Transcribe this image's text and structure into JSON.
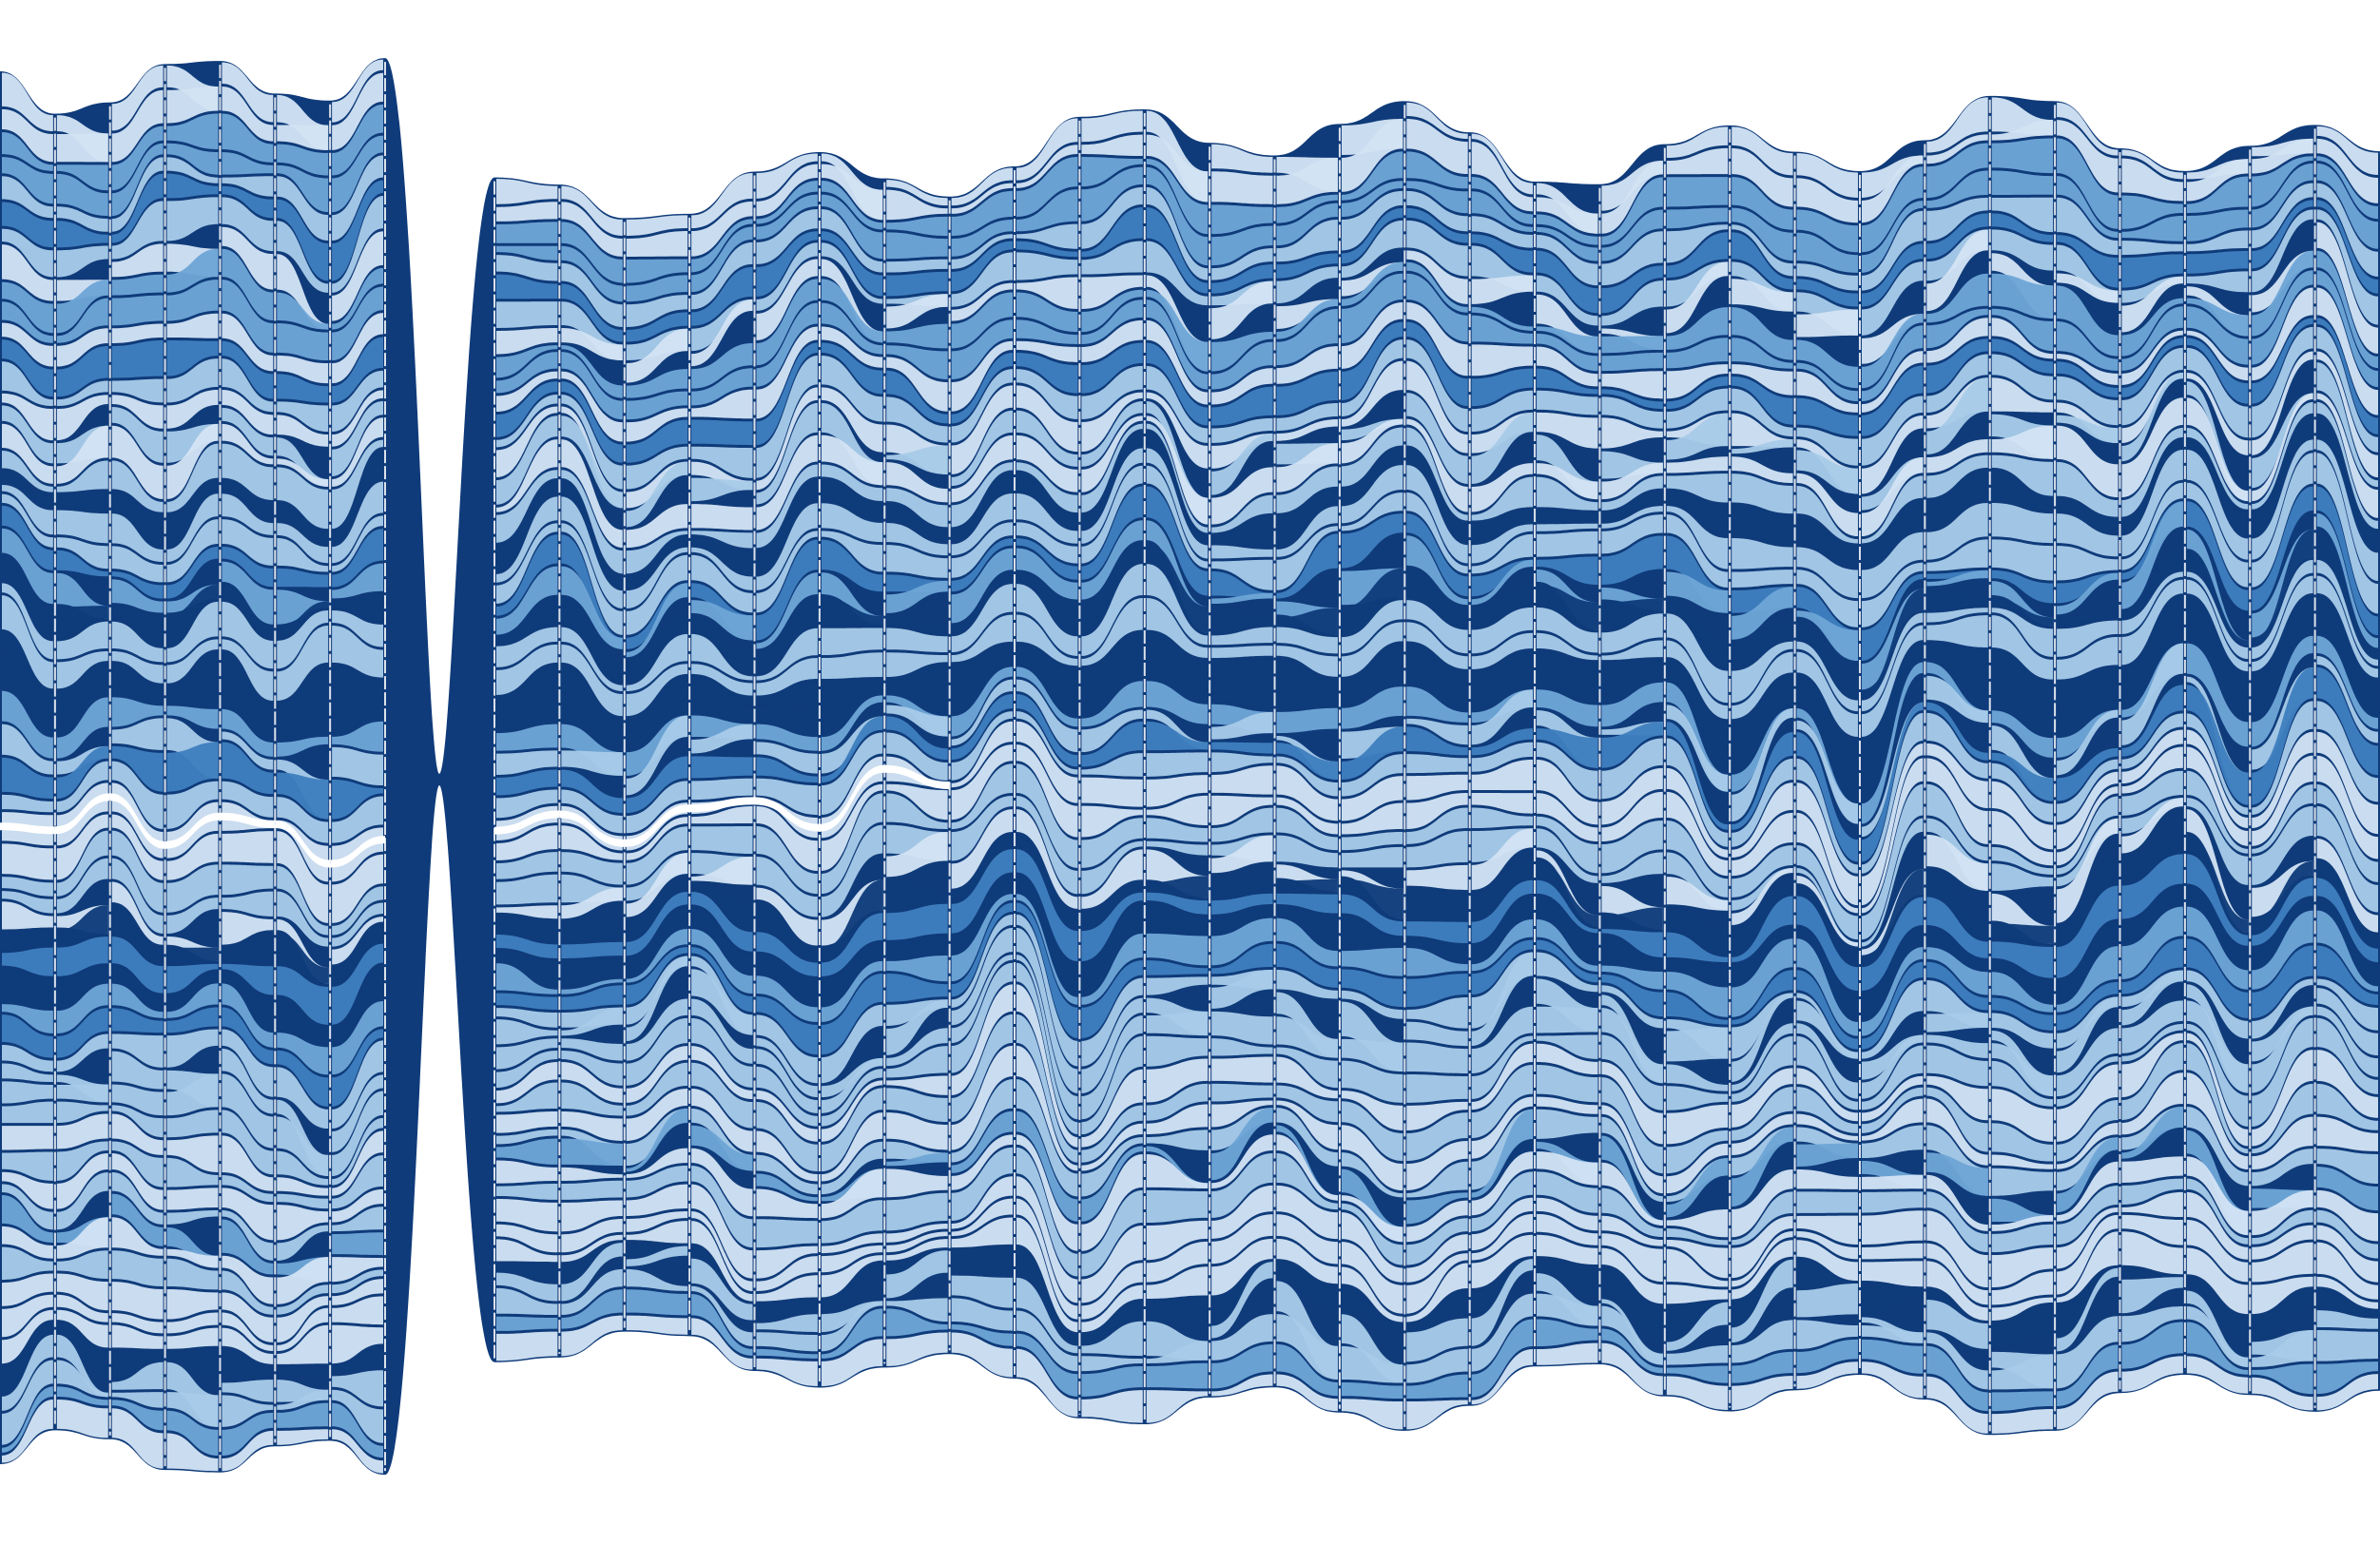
{
  "figure": {
    "kind": "flow-ribbon-diagram",
    "text": [],
    "palette": {
      "background": "#ffffff",
      "lightest": "#d2e3f4",
      "light": "#a8cbe8",
      "medium": "#6ea6d6",
      "mid_dark": "#3f7fbe",
      "dark": "#0f3b7a",
      "highlight": "#ffffff"
    },
    "stages": 37,
    "gap_after_stage": 7,
    "ribbon_count": 60
  }
}
